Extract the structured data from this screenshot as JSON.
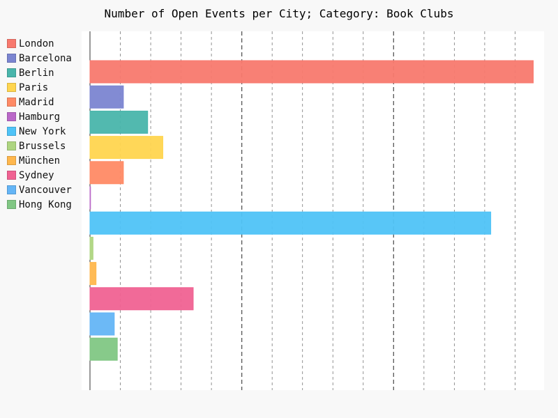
{
  "chart_data": {
    "type": "bar",
    "orientation": "horizontal",
    "title": "Number of Open Events per City; Category: Book Clubs",
    "xlabel": "",
    "ylabel": "",
    "xlim": [
      0,
      147
    ],
    "xticks": [
      0,
      10,
      20,
      30,
      40,
      50,
      60,
      70,
      80,
      90,
      100,
      110,
      120,
      130,
      140
    ],
    "major_xticks": [
      50,
      100
    ],
    "grid": "vertical dashed",
    "legend_position": "left",
    "series": [
      {
        "name": "London",
        "value": 146,
        "color": "#f8796e"
      },
      {
        "name": "Barcelona",
        "value": 11,
        "color": "#7b85d1"
      },
      {
        "name": "Berlin",
        "value": 19,
        "color": "#49b5ab"
      },
      {
        "name": "Paris",
        "value": 24,
        "color": "#ffd54f"
      },
      {
        "name": "Madrid",
        "value": 11,
        "color": "#ff8a65"
      },
      {
        "name": "Hamburg",
        "value": 0,
        "color": "#ba68c8"
      },
      {
        "name": "New York",
        "value": 132,
        "color": "#4fc3f7"
      },
      {
        "name": "Brussels",
        "value": 1,
        "color": "#aed581"
      },
      {
        "name": "München",
        "value": 2,
        "color": "#ffb74d"
      },
      {
        "name": "Sydney",
        "value": 34,
        "color": "#f06292"
      },
      {
        "name": "Vancouver",
        "value": 8,
        "color": "#64b5f6"
      },
      {
        "name": "Hong Kong",
        "value": 9,
        "color": "#81c784"
      }
    ]
  }
}
